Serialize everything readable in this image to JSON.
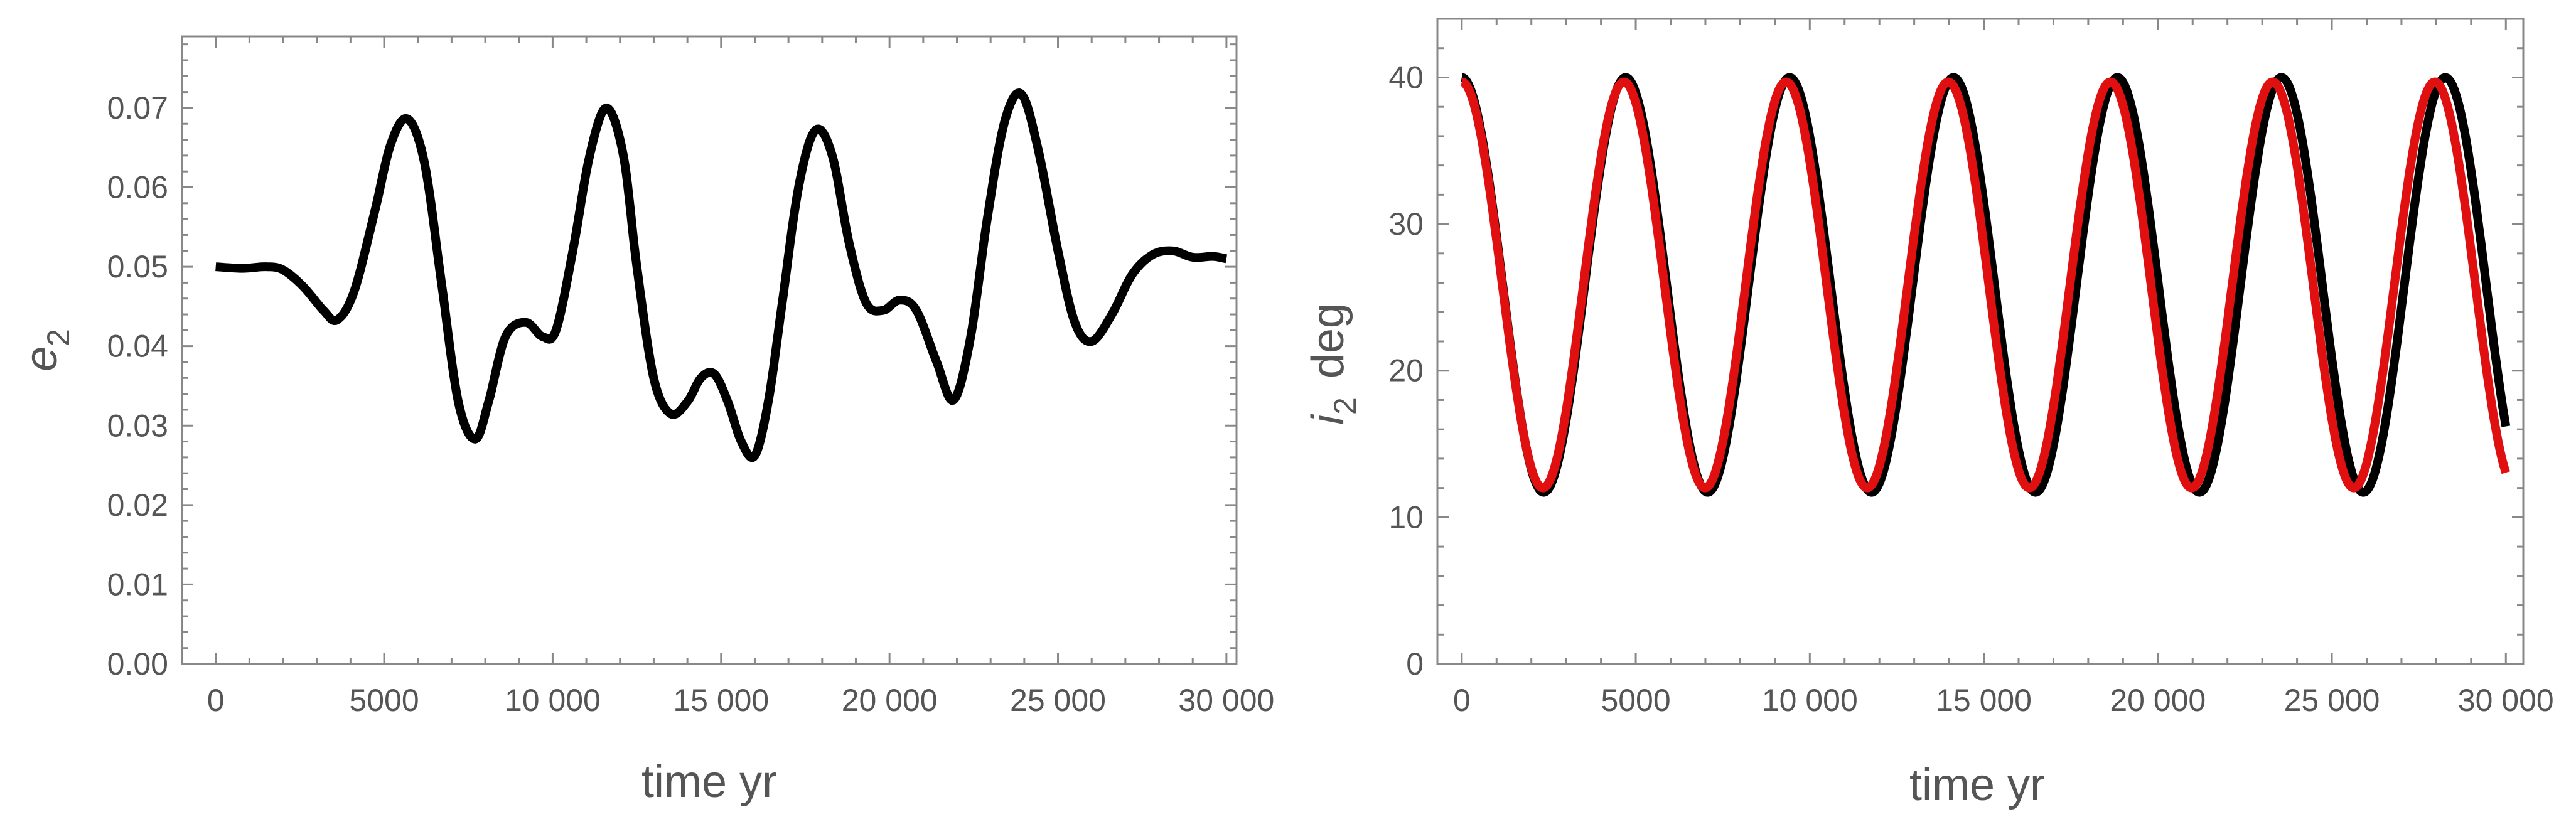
{
  "chart_data": [
    {
      "type": "line",
      "title": "",
      "xlabel": "time  yr",
      "ylabel_main": "e",
      "ylabel_sub": "2",
      "ylabel_rest": "",
      "xlim": [
        -1000,
        30300
      ],
      "ylim": [
        0,
        0.079
      ],
      "xticks": [
        0,
        5000,
        10000,
        15000,
        20000,
        25000,
        30000
      ],
      "xtick_labels": [
        "0",
        "5000",
        "10 000",
        "15 000",
        "20 000",
        "25 000",
        "30 000"
      ],
      "yticks": [
        0,
        0.01,
        0.02,
        0.03,
        0.04,
        0.05,
        0.06,
        0.07
      ],
      "ytick_labels": [
        "0.00",
        "0.01",
        "0.02",
        "0.03",
        "0.04",
        "0.05",
        "0.06",
        "0.07"
      ],
      "grid": false,
      "series": [
        {
          "color": "#000000",
          "x": [
            0,
            800,
            1500,
            2000,
            2600,
            3200,
            3600,
            4100,
            4700,
            5200,
            5700,
            6200,
            6700,
            7200,
            7700,
            8100,
            8600,
            9200,
            9700,
            10100,
            10600,
            11100,
            11600,
            12100,
            12500,
            13000,
            13500,
            14000,
            14400,
            14800,
            15200,
            15600,
            16000,
            16400,
            16800,
            17300,
            17800,
            18300,
            18800,
            19300,
            19800,
            20300,
            20800,
            21400,
            21900,
            22400,
            22900,
            23400,
            23900,
            24400,
            25000,
            25500,
            26000,
            26600,
            27200,
            27800,
            28400,
            29000,
            29600,
            30000
          ],
          "y": [
            0.05,
            0.0498,
            0.05,
            0.0496,
            0.0475,
            0.0445,
            0.0433,
            0.0468,
            0.0566,
            0.0655,
            0.0686,
            0.063,
            0.048,
            0.033,
            0.0283,
            0.033,
            0.0412,
            0.043,
            0.0412,
            0.042,
            0.052,
            0.064,
            0.07,
            0.064,
            0.05,
            0.036,
            0.0315,
            0.033,
            0.036,
            0.0365,
            0.033,
            0.028,
            0.0262,
            0.033,
            0.045,
            0.06,
            0.0672,
            0.064,
            0.053,
            0.0455,
            0.0445,
            0.0458,
            0.0445,
            0.038,
            0.0332,
            0.041,
            0.056,
            0.068,
            0.0718,
            0.065,
            0.052,
            0.043,
            0.0406,
            0.044,
            0.049,
            0.0515,
            0.052,
            0.0512,
            0.0513,
            0.051
          ]
        }
      ]
    },
    {
      "type": "line",
      "title": "",
      "xlabel": "time  yr",
      "ylabel_main": "i",
      "ylabel_sub": "2",
      "ylabel_rest": "deg",
      "xlim": [
        -700,
        30500
      ],
      "ylim": [
        0,
        44
      ],
      "xticks": [
        0,
        5000,
        10000,
        15000,
        20000,
        25000,
        30000
      ],
      "xtick_labels": [
        "0",
        "5000",
        "10 000",
        "15 000",
        "20 000",
        "25 000",
        "30 000"
      ],
      "yticks": [
        0,
        10,
        20,
        30,
        40
      ],
      "ytick_labels": [
        "0",
        "10",
        "20",
        "30",
        "40"
      ],
      "grid": false,
      "series": [
        {
          "color": "#000000",
          "model": "cosine",
          "mid": 25.85,
          "amp": 14.15,
          "period": 4710,
          "phase0": 0,
          "x_end": 30000
        },
        {
          "color": "#e01010",
          "model": "cosine",
          "mid": 25.85,
          "amp": 13.85,
          "period": 4660,
          "phase0": 0,
          "x_end": 30000
        }
      ]
    }
  ]
}
